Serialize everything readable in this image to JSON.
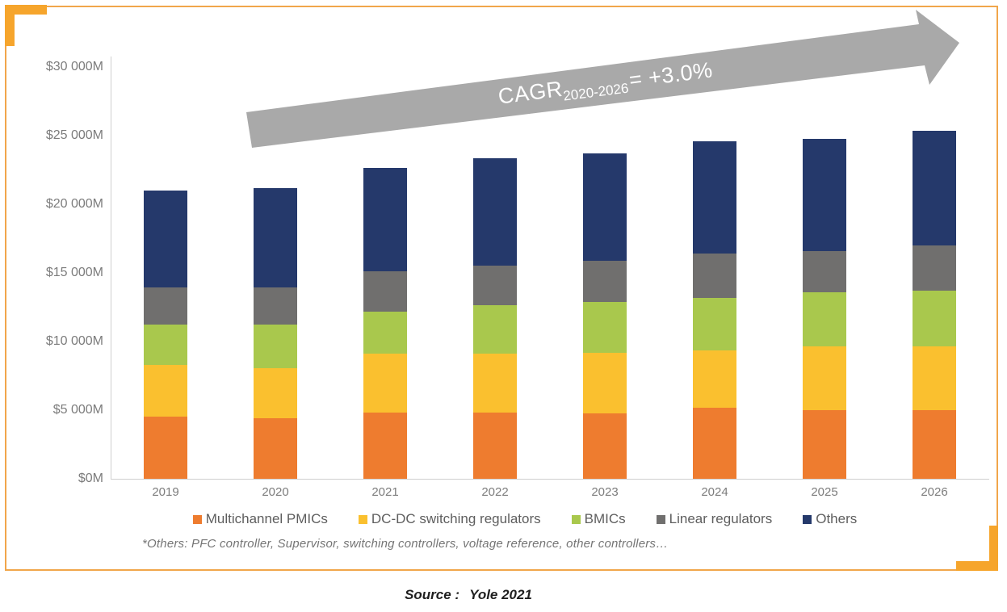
{
  "frame": {
    "border_color": "#F1A64B",
    "bracket_color": "#F6A52C"
  },
  "arrow": {
    "color": "#A9A9A9",
    "label_prefix": "CAGR",
    "label_sub": "2020-2026",
    "label_suffix": "= +3.0%",
    "text_color": "#FFFFFF"
  },
  "chart": {
    "y_axis": {
      "ticks": [
        {
          "label": "$30 000M",
          "value": 30000
        },
        {
          "label": "$25 000M",
          "value": 25000
        },
        {
          "label": "$20 000M",
          "value": 20000
        },
        {
          "label": "$15 000M",
          "value": 15000
        },
        {
          "label": "$10 000M",
          "value": 10000
        },
        {
          "label": "$5 000M",
          "value": 5000
        },
        {
          "label": "$0M",
          "value": 0
        }
      ]
    },
    "footnote": "*Others: PFC controller, Supervisor, switching controllers, voltage reference, other controllers…"
  },
  "chart_data": {
    "type": "bar",
    "stacked": true,
    "title": "Power management IC market forecast, CAGR 2020-2026 = +3.0%",
    "unit": "$M",
    "ylim": [
      0,
      30000
    ],
    "grid": false,
    "legend_position": "bottom",
    "categories": [
      "2019",
      "2020",
      "2021",
      "2022",
      "2023",
      "2024",
      "2025",
      "2026"
    ],
    "series": [
      {
        "name": "Multichannel PMICs",
        "color": "#EE7C2F",
        "values": [
          4550,
          4400,
          4800,
          4800,
          4750,
          5150,
          5000,
          5000
        ]
      },
      {
        "name": "DC-DC switching regulators",
        "color": "#FAC02F",
        "values": [
          3750,
          3650,
          4300,
          4300,
          4400,
          4150,
          4650,
          4650
        ]
      },
      {
        "name": "BMICs",
        "color": "#A9C84D",
        "values": [
          2950,
          3200,
          3050,
          3550,
          3700,
          3800,
          3950,
          4050
        ]
      },
      {
        "name": "Linear regulators",
        "color": "#706F6E",
        "values": [
          2700,
          2700,
          2950,
          2900,
          3000,
          3250,
          3000,
          3300
        ]
      },
      {
        "name": "Others",
        "color": "#25396B",
        "values": [
          7050,
          7250,
          7550,
          7800,
          7850,
          8150,
          8150,
          8350
        ]
      }
    ],
    "totals": [
      21000,
      21200,
      22650,
      23350,
      23700,
      24500,
      24750,
      25350
    ]
  },
  "source": {
    "label": "Source :",
    "value": "Yole 2021"
  }
}
